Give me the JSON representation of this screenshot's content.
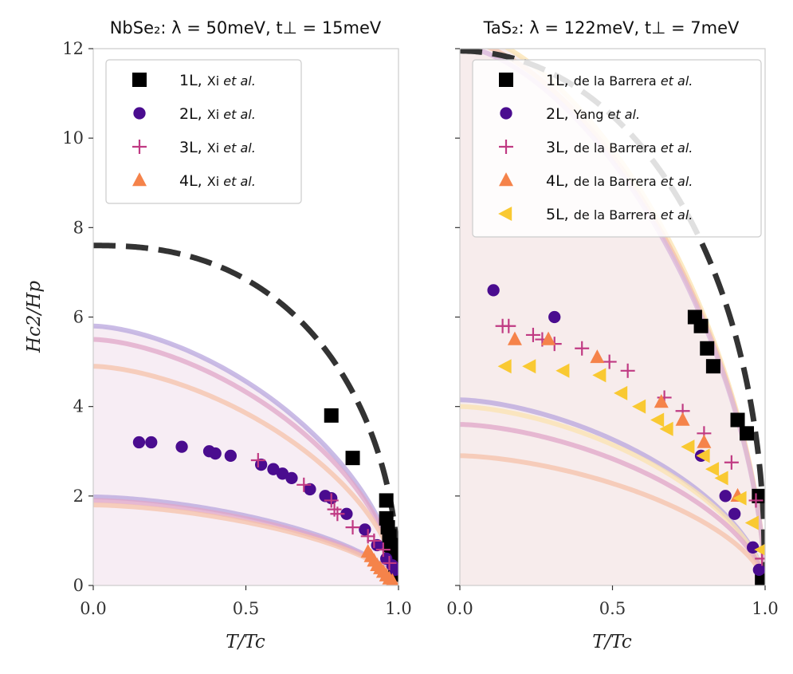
{
  "chart_data": [
    {
      "type": "scatter",
      "title": "NbSe₂: λ = 50meV, t⊥ = 15meV",
      "xlabel": "T/Tc",
      "ylabel": "Hc2/Hp",
      "xlim": [
        0.0,
        1.0
      ],
      "ylim": [
        0,
        12
      ],
      "xticks": [
        "0.0",
        "0.5",
        "1.0"
      ],
      "yticks": [
        "0",
        "2",
        "4",
        "6",
        "8",
        "10",
        "12"
      ],
      "legend_position": "top-left",
      "series": [
        {
          "name": "1L",
          "source": "Xi et al.",
          "marker": "square",
          "color": "#000000",
          "points": [
            [
              0.78,
              3.8
            ],
            [
              0.85,
              2.85
            ],
            [
              0.96,
              1.9
            ],
            [
              0.96,
              1.5
            ],
            [
              0.965,
              1.3
            ],
            [
              0.97,
              1.1
            ],
            [
              0.975,
              0.9
            ],
            [
              0.98,
              0.7
            ],
            [
              0.985,
              0.55
            ],
            [
              0.99,
              0.4
            ],
            [
              0.995,
              0.25
            ]
          ]
        },
        {
          "name": "2L",
          "source": "Xi et al.",
          "marker": "circle",
          "color": "#4a0c8f",
          "points": [
            [
              0.15,
              3.2
            ],
            [
              0.19,
              3.2
            ],
            [
              0.29,
              3.1
            ],
            [
              0.38,
              3.0
            ],
            [
              0.4,
              2.95
            ],
            [
              0.45,
              2.9
            ],
            [
              0.55,
              2.7
            ],
            [
              0.59,
              2.6
            ],
            [
              0.62,
              2.5
            ],
            [
              0.65,
              2.4
            ],
            [
              0.71,
              2.15
            ],
            [
              0.76,
              2.0
            ],
            [
              0.78,
              1.95
            ],
            [
              0.83,
              1.6
            ],
            [
              0.89,
              1.25
            ],
            [
              0.93,
              0.9
            ],
            [
              0.96,
              0.6
            ],
            [
              0.98,
              0.45
            ],
            [
              0.99,
              0.35
            ]
          ]
        },
        {
          "name": "3L",
          "source": "Xi et al.",
          "marker": "plus",
          "color": "#c03a83",
          "points": [
            [
              0.54,
              2.8
            ],
            [
              0.69,
              2.25
            ],
            [
              0.78,
              1.9
            ],
            [
              0.79,
              1.7
            ],
            [
              0.8,
              1.6
            ],
            [
              0.85,
              1.3
            ],
            [
              0.9,
              1.1
            ],
            [
              0.92,
              1.0
            ],
            [
              0.95,
              0.8
            ],
            [
              0.97,
              0.5
            ]
          ]
        },
        {
          "name": "4L",
          "source": "Xi et al.",
          "marker": "triangle-up",
          "color": "#f5834a",
          "points": [
            [
              0.9,
              0.75
            ],
            [
              0.91,
              0.65
            ],
            [
              0.92,
              0.55
            ],
            [
              0.93,
              0.45
            ],
            [
              0.94,
              0.38
            ],
            [
              0.95,
              0.3
            ],
            [
              0.96,
              0.22
            ],
            [
              0.97,
              0.15
            ],
            [
              0.98,
              0.1
            ]
          ]
        }
      ]
    },
    {
      "type": "scatter",
      "title": "TaS₂: λ = 122meV, t⊥ = 7meV",
      "xlabel": "T/Tc",
      "ylabel": "",
      "xlim": [
        0.0,
        1.0
      ],
      "ylim": [
        0,
        12
      ],
      "xticks": [
        "0.0",
        "0.5",
        "1.0"
      ],
      "legend_position": "top-right",
      "series": [
        {
          "name": "1L",
          "source": "de la Barrera et al.",
          "marker": "square",
          "color": "#000000",
          "points": [
            [
              0.77,
              6.0
            ],
            [
              0.79,
              5.8
            ],
            [
              0.81,
              5.3
            ],
            [
              0.83,
              4.9
            ],
            [
              0.91,
              3.7
            ],
            [
              0.94,
              3.4
            ],
            [
              0.98,
              2.0
            ],
            [
              0.99,
              0.1
            ]
          ]
        },
        {
          "name": "2L",
          "source": "Yang et al.",
          "marker": "circle",
          "color": "#4a0c8f",
          "points": [
            [
              0.11,
              6.6
            ],
            [
              0.31,
              6.0
            ],
            [
              0.79,
              2.9
            ],
            [
              0.87,
              2.0
            ],
            [
              0.9,
              1.6
            ],
            [
              0.96,
              0.85
            ],
            [
              0.98,
              0.35
            ]
          ]
        },
        {
          "name": "3L",
          "source": "de la Barrera et al.",
          "marker": "plus",
          "color": "#c03a83",
          "points": [
            [
              0.14,
              5.8
            ],
            [
              0.16,
              5.8
            ],
            [
              0.24,
              5.6
            ],
            [
              0.27,
              5.5
            ],
            [
              0.31,
              5.4
            ],
            [
              0.4,
              5.3
            ],
            [
              0.49,
              5.0
            ],
            [
              0.55,
              4.8
            ],
            [
              0.67,
              4.2
            ],
            [
              0.73,
              3.9
            ],
            [
              0.8,
              3.4
            ],
            [
              0.89,
              2.75
            ],
            [
              0.97,
              1.9
            ],
            [
              0.99,
              0.6
            ]
          ]
        },
        {
          "name": "4L",
          "source": "de la Barrera et al.",
          "marker": "triangle-up",
          "color": "#f5834a",
          "points": [
            [
              0.18,
              5.5
            ],
            [
              0.29,
              5.5
            ],
            [
              0.45,
              5.1
            ],
            [
              0.66,
              4.1
            ],
            [
              0.73,
              3.7
            ],
            [
              0.8,
              3.2
            ],
            [
              0.91,
              2.0
            ]
          ]
        },
        {
          "name": "5L",
          "source": "de la Barrera et al.",
          "marker": "triangle-left",
          "color": "#f9c932",
          "points": [
            [
              0.15,
              4.9
            ],
            [
              0.23,
              4.9
            ],
            [
              0.34,
              4.8
            ],
            [
              0.46,
              4.7
            ],
            [
              0.53,
              4.3
            ],
            [
              0.59,
              4.0
            ],
            [
              0.65,
              3.7
            ],
            [
              0.68,
              3.5
            ],
            [
              0.75,
              3.1
            ],
            [
              0.8,
              2.9
            ],
            [
              0.83,
              2.6
            ],
            [
              0.86,
              2.4
            ],
            [
              0.92,
              1.95
            ],
            [
              0.96,
              1.4
            ],
            [
              0.99,
              0.8
            ]
          ]
        }
      ]
    }
  ]
}
